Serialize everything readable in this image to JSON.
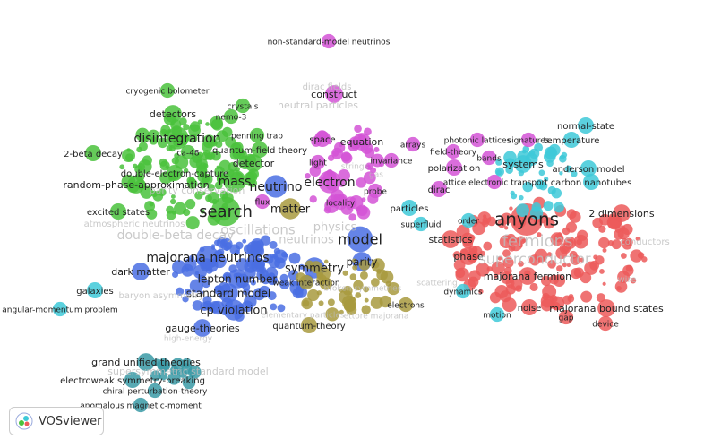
{
  "app": {
    "name": "VOSviewer"
  },
  "clusters": [
    {
      "color": "#ec5a5a",
      "labels": [
        "anyons",
        "2 dimensions",
        "statistics",
        "phase",
        "majorana fermion",
        "noise",
        "majorana bound states",
        "device",
        "gap"
      ],
      "faint_labels": [
        "fermions",
        "superconductor",
        "wire"
      ]
    },
    {
      "color": "#3ec9d8",
      "labels": [
        "normal-state",
        "temperature",
        "systems",
        "anderson model",
        "carbon nanotubes",
        "particles",
        "order",
        "superfluid",
        "dynamics",
        "motion",
        "galaxies",
        "angular-momentum problem"
      ],
      "faint_labels": [
        "conductors"
      ]
    },
    {
      "color": "#4ac23c",
      "labels": [
        "cryogenic bolometer",
        "crystals",
        "detectors",
        "nemo-3",
        "disintegration",
        "penning trap",
        "quantum-field theory",
        "ca-48",
        "2-beta decay",
        "detector",
        "double-electron-capture",
        "random-phase-approximation",
        "mass",
        "excited states",
        "search"
      ],
      "faint_labels": [
        "parity conservation",
        "double-beta decay",
        "oscillations",
        "atmospheric neutrinos"
      ]
    },
    {
      "color": "#4a6fe3",
      "labels": [
        "neutrino",
        "model",
        "parity",
        "symmetry",
        "majorana neutrinos",
        "dark matter",
        "lepton number",
        "standard model",
        "cp violation",
        "gauge-theories"
      ],
      "faint_labels": [
        "neutrinos",
        "baryon asymmetry",
        "high-energy"
      ]
    },
    {
      "color": "#a89a3e",
      "labels": [
        "matter",
        "weak interaction",
        "quantum-theory",
        "electrons"
      ],
      "faint_labels": [
        "elementary particles",
        "ettore majorana",
        "broken symmetries",
        "scattering"
      ]
    },
    {
      "color": "#d454d6",
      "labels": [
        "non-standard-model neutrinos",
        "construct",
        "space",
        "equation",
        "arrays",
        "photonic lattices",
        "signatures",
        "field-theory",
        "bands",
        "light",
        "invariance",
        "polarization",
        "electron",
        "probe",
        "dirac",
        "lattice electronic transport",
        "flux",
        "locality"
      ],
      "faint_labels": [
        "dirac fields",
        "neutral particles",
        "physics",
        "strings",
        "gas"
      ]
    },
    {
      "color": "#3a9aa6",
      "labels": [
        "grand unified theories",
        "electroweak symmetry-breaking",
        "chiral perturbation-theory",
        "anomalous magnetic-moment"
      ],
      "faint_labels": [
        "supersymmetric standard model"
      ]
    }
  ]
}
